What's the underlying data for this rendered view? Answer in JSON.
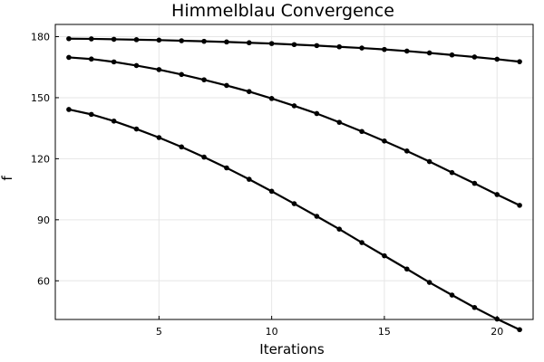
{
  "chart_data": {
    "type": "line",
    "title": "Himmelblau Convergence",
    "xlabel": "Iterations",
    "ylabel": "f",
    "xlim": [
      0.4,
      21.6
    ],
    "ylim": [
      41,
      186
    ],
    "xticks": [
      5,
      10,
      15,
      20
    ],
    "yticks": [
      60,
      90,
      120,
      150,
      180
    ],
    "grid": true,
    "legend": "none",
    "line_color": "#000000",
    "x": [
      1,
      2,
      3,
      4,
      5,
      6,
      7,
      8,
      9,
      10,
      11,
      12,
      13,
      14,
      15,
      16,
      17,
      18,
      19,
      20,
      21
    ],
    "series": [
      {
        "values": [
          179.0,
          178.9,
          178.7,
          178.5,
          178.3,
          178.0,
          177.7,
          177.4,
          177.0,
          176.6,
          176.1,
          175.6,
          175.0,
          174.4,
          173.7,
          172.9,
          172.0,
          171.0,
          170.0,
          168.9,
          167.7
        ]
      },
      {
        "values": [
          169.8,
          169.0,
          167.6,
          165.8,
          163.8,
          161.4,
          158.8,
          156.0,
          153.0,
          149.6,
          146.0,
          142.2,
          137.9,
          133.4,
          128.7,
          123.8,
          118.6,
          113.2,
          107.9,
          102.4,
          97.1
        ]
      },
      {
        "values": [
          144.2,
          141.8,
          138.5,
          134.6,
          130.4,
          125.8,
          120.8,
          115.5,
          109.9,
          104.0,
          97.9,
          91.7,
          85.4,
          78.8,
          72.3,
          65.8,
          59.2,
          53.0,
          46.9,
          41.2,
          36.0
        ]
      }
    ]
  }
}
